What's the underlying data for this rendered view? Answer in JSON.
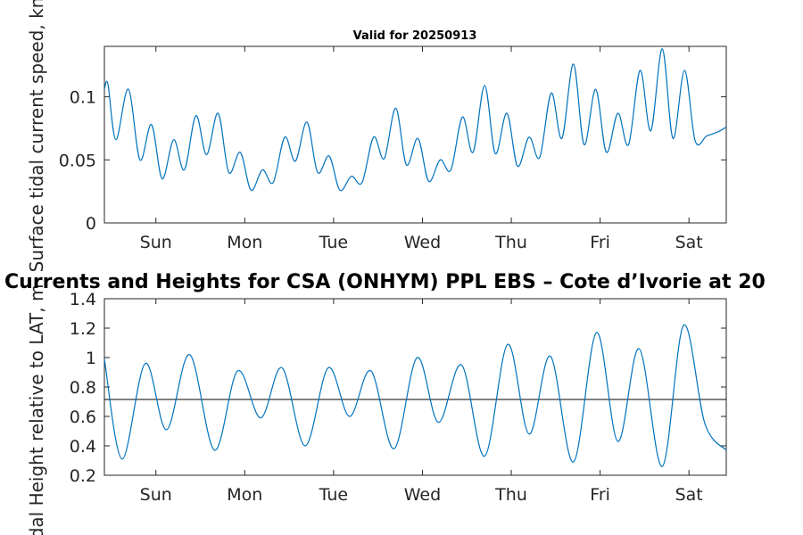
{
  "titles": {
    "top": "Valid for 20250913",
    "bottom": "Currents and Heights for CSA (ONHYM) PPL EBS  – Cote d’Ivorie at 20"
  },
  "colors": {
    "series": "#0072BD",
    "axis": "#262626",
    "reference": "#000000"
  },
  "chart_data": [
    {
      "type": "line",
      "ylabel": "Surface tidal current speed, kn",
      "xlim": [
        0,
        7
      ],
      "ylim": [
        0,
        0.14
      ],
      "yticks": [
        0,
        0.05,
        0.1
      ],
      "ytick_labels": [
        "0",
        "0.05",
        "0.1"
      ],
      "xticks": [
        0.58,
        1.58,
        2.58,
        3.58,
        4.58,
        5.58,
        6.58
      ],
      "xtick_labels": [
        "Sun",
        "Mon",
        "Tue",
        "Wed",
        "Thu",
        "Fri",
        "Sat"
      ],
      "series": [
        {
          "x": [
            0.0,
            0.04,
            0.13,
            0.27,
            0.4,
            0.53,
            0.65,
            0.78,
            0.9,
            1.03,
            1.15,
            1.28,
            1.4,
            1.53,
            1.65,
            1.78,
            1.9,
            2.03,
            2.15,
            2.28,
            2.4,
            2.53,
            2.65,
            2.78,
            2.9,
            3.03,
            3.15,
            3.28,
            3.4,
            3.53,
            3.65,
            3.78,
            3.9,
            4.03,
            4.15,
            4.28,
            4.4,
            4.53,
            4.65,
            4.78,
            4.9,
            5.03,
            5.15,
            5.28,
            5.4,
            5.53,
            5.65,
            5.78,
            5.9,
            6.03,
            6.15,
            6.28,
            6.4,
            6.53,
            6.65,
            6.78,
            6.9,
            7.0
          ],
          "y": [
            0.106,
            0.11,
            0.066,
            0.106,
            0.05,
            0.078,
            0.035,
            0.066,
            0.042,
            0.085,
            0.054,
            0.087,
            0.04,
            0.056,
            0.026,
            0.042,
            0.032,
            0.068,
            0.049,
            0.08,
            0.04,
            0.053,
            0.026,
            0.037,
            0.032,
            0.068,
            0.051,
            0.091,
            0.046,
            0.067,
            0.033,
            0.05,
            0.042,
            0.084,
            0.056,
            0.109,
            0.055,
            0.087,
            0.045,
            0.068,
            0.052,
            0.103,
            0.067,
            0.126,
            0.062,
            0.106,
            0.056,
            0.087,
            0.062,
            0.121,
            0.073,
            0.138,
            0.067,
            0.121,
            0.065,
            0.069,
            0.072,
            0.076
          ]
        }
      ]
    },
    {
      "type": "line",
      "ylabel": "Tidal Height relative to LAT, m",
      "xlim": [
        0,
        7
      ],
      "ylim": [
        0.2,
        1.4
      ],
      "yticks": [
        0.2,
        0.4,
        0.6,
        0.8,
        1.0,
        1.2,
        1.4
      ],
      "ytick_labels": [
        "0.2",
        "0.4",
        "0.6",
        "0.8",
        "1",
        "1.2",
        "1.4"
      ],
      "xticks": [
        0.58,
        1.58,
        2.58,
        3.58,
        4.58,
        5.58,
        6.58
      ],
      "xtick_labels": [
        "Sun",
        "Mon",
        "Tue",
        "Wed",
        "Thu",
        "Fri",
        "Sat"
      ],
      "reference_line": 0.715,
      "series": [
        {
          "x": [
            0.0,
            0.2,
            0.46,
            0.7,
            0.96,
            1.24,
            1.5,
            1.76,
            2.0,
            2.26,
            2.52,
            2.76,
            3.0,
            3.26,
            3.52,
            3.76,
            4.02,
            4.28,
            4.54,
            4.78,
            5.02,
            5.28,
            5.54,
            5.78,
            6.02,
            6.28,
            6.52,
            6.76,
            7.0
          ],
          "y": [
            0.99,
            0.31,
            0.96,
            0.51,
            1.02,
            0.37,
            0.91,
            0.59,
            0.93,
            0.4,
            0.93,
            0.6,
            0.91,
            0.38,
            1.0,
            0.56,
            0.95,
            0.33,
            1.09,
            0.48,
            1.01,
            0.29,
            1.17,
            0.43,
            1.06,
            0.26,
            1.22,
            0.55,
            0.37
          ]
        }
      ]
    }
  ]
}
